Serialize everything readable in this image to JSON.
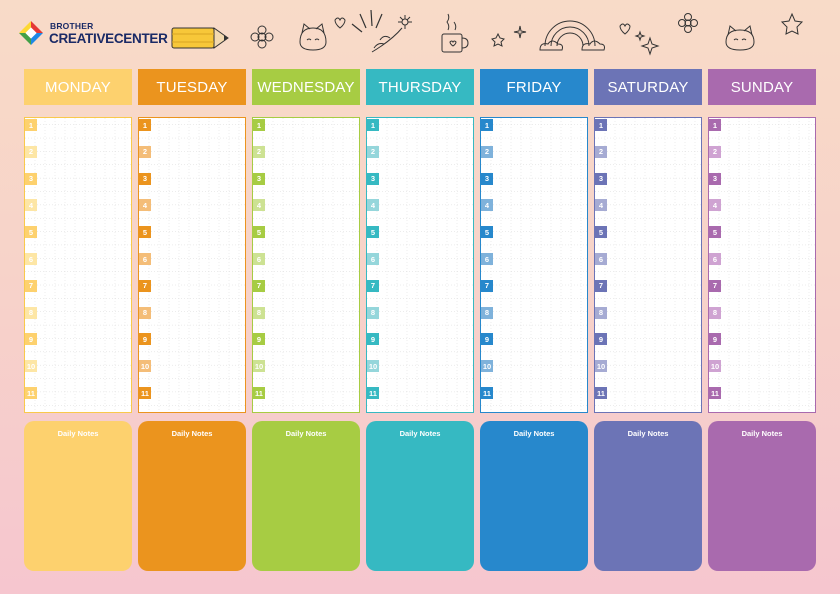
{
  "brand": {
    "line1": "BROTHER",
    "line2": "CREATIVECENTER"
  },
  "notes_label": "Daily Notes",
  "slots": [
    "1",
    "2",
    "3",
    "4",
    "5",
    "6",
    "7",
    "8",
    "9",
    "10",
    "11"
  ],
  "days": [
    {
      "name": "MONDAY",
      "color": "#fdd16e",
      "light": "#fde6a5",
      "border": "#f9c94b"
    },
    {
      "name": "TUESDAY",
      "color": "#eb941e",
      "light": "#f4bd78",
      "border": "#eb941e"
    },
    {
      "name": "WEDNESDAY",
      "color": "#a7cc43",
      "light": "#cde293",
      "border": "#a7cc43"
    },
    {
      "name": "THURSDAY",
      "color": "#36b9c2",
      "light": "#95d6db",
      "border": "#36b9c2"
    },
    {
      "name": "FRIDAY",
      "color": "#2788cc",
      "light": "#7fb2db",
      "border": "#2788cc"
    },
    {
      "name": "SATURDAY",
      "color": "#6c74b6",
      "light": "#a6abd3",
      "border": "#6c74b6"
    },
    {
      "name": "SUNDAY",
      "color": "#a96aae",
      "light": "#cfa3d2",
      "border": "#a96aae"
    }
  ],
  "doodle_icons": [
    "pencil-icon",
    "flower-icon",
    "cat-face-icon",
    "heart-icon",
    "burst-lines-icon",
    "flowers-icon",
    "coffee-cup-icon",
    "stars-icon",
    "rainbow-icon",
    "heart-icon",
    "sparkle-icon",
    "flower-icon",
    "cat-face-icon",
    "star-icon"
  ]
}
